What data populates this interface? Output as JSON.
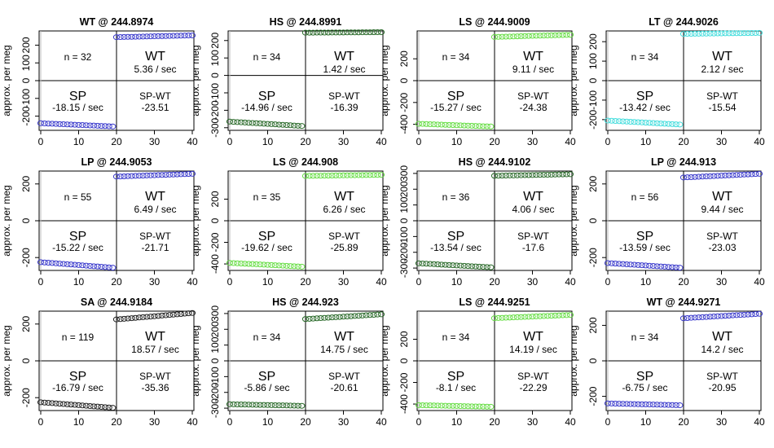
{
  "figure": {
    "ylabel": "approx. per meg",
    "xticks": [
      0,
      10,
      20,
      30,
      40
    ]
  },
  "chart_data": [
    {
      "type": "scatter",
      "title": "WT @ 244.8974",
      "color": "#3a3acc",
      "xlim": [
        0,
        40
      ],
      "ylim": [
        -280,
        280
      ],
      "yticks": [
        -200,
        -100,
        0,
        100,
        200
      ],
      "n_label": "n = 32",
      "wt_label": "WT",
      "wt_rate": "5.36 / sec",
      "sp_label": "SP",
      "sp_rate": "-18.15 / sec",
      "diff_label": "SP-WT",
      "diff_value": "-23.51",
      "split_x": 20,
      "sp_y0": -240,
      "sp_y1": -258,
      "wt_y0": 245,
      "wt_y1": 255
    },
    {
      "type": "scatter",
      "title": "HS @ 244.8991",
      "color": "#2a6a2a",
      "xlim": [
        0,
        40
      ],
      "ylim": [
        -315,
        255
      ],
      "yticks": [
        -300,
        -200,
        -100,
        0,
        100,
        200
      ],
      "n_label": "n = 34",
      "wt_label": "WT",
      "wt_rate": "1.42 / sec",
      "sp_label": "SP",
      "sp_rate": "-14.96 / sec",
      "diff_label": "SP-WT",
      "diff_value": "-16.39",
      "split_x": 20,
      "sp_y0": -265,
      "sp_y1": -290,
      "wt_y0": 245,
      "wt_y1": 248
    },
    {
      "type": "scatter",
      "title": "LS @ 244.9009",
      "color": "#66dd44",
      "xlim": [
        0,
        40
      ],
      "ylim": [
        -455,
        455
      ],
      "yticks": [
        -400,
        -200,
        0,
        200
      ],
      "n_label": "n = 34",
      "wt_label": "WT",
      "wt_rate": "9.11 / sec",
      "sp_label": "SP",
      "sp_rate": "-15.27 / sec",
      "diff_label": "SP-WT",
      "diff_value": "-24.38",
      "split_x": 20,
      "sp_y0": -395,
      "sp_y1": -420,
      "wt_y0": 400,
      "wt_y1": 420
    },
    {
      "type": "scatter",
      "title": "LT @ 244.9026",
      "color": "#44dddd",
      "xlim": [
        0,
        40
      ],
      "ylim": [
        -255,
        255
      ],
      "yticks": [
        -200,
        -100,
        0,
        100,
        200
      ],
      "n_label": "n = 34",
      "wt_label": "WT",
      "wt_rate": "2.12 / sec",
      "sp_label": "SP",
      "sp_rate": "-13.42 / sec",
      "diff_label": "SP-WT",
      "diff_value": "-15.54",
      "split_x": 20,
      "sp_y0": -205,
      "sp_y1": -225,
      "wt_y0": 240,
      "wt_y1": 245
    },
    {
      "type": "scatter",
      "title": "LP @ 244.9053",
      "color": "#3a3acc",
      "xlim": [
        0,
        40
      ],
      "ylim": [
        -270,
        270
      ],
      "yticks": [
        -200,
        0,
        200
      ],
      "n_label": "n = 55",
      "wt_label": "WT",
      "wt_rate": "6.49 / sec",
      "sp_label": "SP",
      "sp_rate": "-15.22 / sec",
      "diff_label": "SP-WT",
      "diff_value": "-21.71",
      "split_x": 20,
      "sp_y0": -225,
      "sp_y1": -255,
      "wt_y0": 240,
      "wt_y1": 255
    },
    {
      "type": "scatter",
      "title": "LS @ 244.908",
      "color": "#66dd44",
      "xlim": [
        0,
        40
      ],
      "ylim": [
        -460,
        460
      ],
      "yticks": [
        -400,
        -200,
        0,
        200
      ],
      "n_label": "n = 35",
      "wt_label": "WT",
      "wt_rate": "6.26 / sec",
      "sp_label": "SP",
      "sp_rate": "-19.62 / sec",
      "diff_label": "SP-WT",
      "diff_value": "-25.89",
      "split_x": 20,
      "sp_y0": -390,
      "sp_y1": -425,
      "wt_y0": 415,
      "wt_y1": 425
    },
    {
      "type": "scatter",
      "title": "HS @ 244.9102",
      "color": "#2a6a2a",
      "xlim": [
        0,
        40
      ],
      "ylim": [
        -315,
        315
      ],
      "yticks": [
        -300,
        -200,
        -100,
        0,
        100,
        200,
        300
      ],
      "n_label": "n = 36",
      "wt_label": "WT",
      "wt_rate": "4.06 / sec",
      "sp_label": "SP",
      "sp_rate": "-13.54 / sec",
      "diff_label": "SP-WT",
      "diff_value": "-17.6",
      "split_x": 20,
      "sp_y0": -270,
      "sp_y1": -295,
      "wt_y0": 285,
      "wt_y1": 295
    },
    {
      "type": "scatter",
      "title": "LP @ 244.913",
      "color": "#3a3acc",
      "xlim": [
        0,
        40
      ],
      "ylim": [
        -270,
        270
      ],
      "yticks": [
        -200,
        0,
        200
      ],
      "n_label": "n = 56",
      "wt_label": "WT",
      "wt_rate": "9.44 / sec",
      "sp_label": "SP",
      "sp_rate": "-13.59 / sec",
      "diff_label": "SP-WT",
      "diff_value": "-23.03",
      "split_x": 20,
      "sp_y0": -230,
      "sp_y1": -255,
      "wt_y0": 235,
      "wt_y1": 255
    },
    {
      "type": "scatter",
      "title": "SA @ 244.9184",
      "color": "#222222",
      "xlim": [
        0,
        40
      ],
      "ylim": [
        -270,
        270
      ],
      "yticks": [
        -200,
        0,
        200
      ],
      "n_label": "n = 119",
      "wt_label": "WT",
      "wt_rate": "18.57 / sec",
      "sp_label": "SP",
      "sp_rate": "-16.79 / sec",
      "diff_label": "SP-WT",
      "diff_value": "-35.36",
      "split_x": 20,
      "sp_y0": -225,
      "sp_y1": -255,
      "wt_y0": 225,
      "wt_y1": 260
    },
    {
      "type": "scatter",
      "title": "HS @ 244.923",
      "color": "#2a6a2a",
      "xlim": [
        0,
        40
      ],
      "ylim": [
        -315,
        315
      ],
      "yticks": [
        -300,
        -200,
        -100,
        0,
        100,
        200,
        300
      ],
      "n_label": "n = 34",
      "wt_label": "WT",
      "wt_rate": "14.75 / sec",
      "sp_label": "SP",
      "sp_rate": "-5.86 / sec",
      "diff_label": "SP-WT",
      "diff_value": "-20.61",
      "split_x": 20,
      "sp_y0": -275,
      "sp_y1": -285,
      "wt_y0": 265,
      "wt_y1": 295
    },
    {
      "type": "scatter",
      "title": "LS @ 244.9251",
      "color": "#66dd44",
      "xlim": [
        0,
        40
      ],
      "ylim": [
        -460,
        460
      ],
      "yticks": [
        -400,
        -200,
        0,
        200
      ],
      "n_label": "n = 34",
      "wt_label": "WT",
      "wt_rate": "14.19 / sec",
      "sp_label": "SP",
      "sp_rate": "-8.1 / sec",
      "diff_label": "SP-WT",
      "diff_value": "-22.29",
      "split_x": 20,
      "sp_y0": -410,
      "sp_y1": -425,
      "wt_y0": 395,
      "wt_y1": 425
    },
    {
      "type": "scatter",
      "title": "WT @ 244.9271",
      "color": "#3a3acc",
      "xlim": [
        0,
        40
      ],
      "ylim": [
        -280,
        280
      ],
      "yticks": [
        -200,
        0,
        200
      ],
      "n_label": "n = 34",
      "wt_label": "WT",
      "wt_rate": "14.2 / sec",
      "sp_label": "SP",
      "sp_rate": "-6.75 / sec",
      "diff_label": "SP-WT",
      "diff_value": "-20.95",
      "split_x": 20,
      "sp_y0": -240,
      "sp_y1": -250,
      "wt_y0": 240,
      "wt_y1": 265
    }
  ]
}
